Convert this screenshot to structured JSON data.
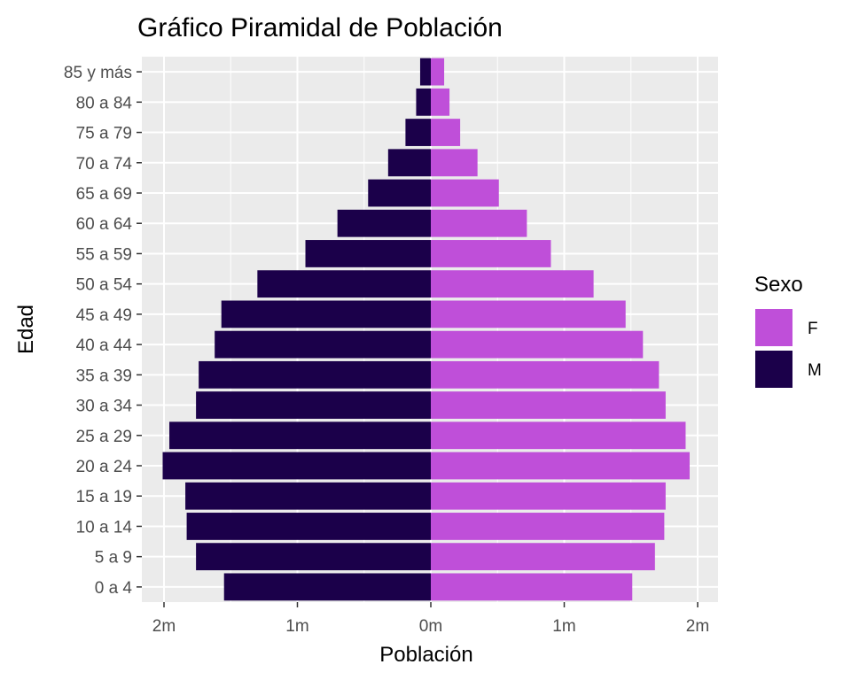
{
  "chart_data": {
    "type": "bar",
    "orientation": "horizontal",
    "title": "Gráfico Piramidal de Población",
    "xlabel": "Población",
    "ylabel": "Edad",
    "xlim": [
      -2.1,
      2.1
    ],
    "x_ticks": [
      -2,
      -1,
      0,
      1,
      2
    ],
    "x_tick_labels": [
      "2m",
      "1m",
      "0m",
      "1m",
      "2m"
    ],
    "categories": [
      "0 a 4",
      "5 a 9",
      "10 a 14",
      "15 a 19",
      "20 a 24",
      "25 a 29",
      "30 a 34",
      "35 a 39",
      "40 a 44",
      "45 a 49",
      "50 a 54",
      "55 a 59",
      "60 a 64",
      "65 a 69",
      "70 a 74",
      "75 a 79",
      "80 a 84",
      "85 y más"
    ],
    "series": [
      {
        "name": "F",
        "color": "#BF4FD9",
        "values": [
          1.51,
          1.68,
          1.75,
          1.76,
          1.94,
          1.91,
          1.76,
          1.71,
          1.59,
          1.46,
          1.22,
          0.9,
          0.72,
          0.51,
          0.35,
          0.22,
          0.14,
          0.1
        ]
      },
      {
        "name": "M",
        "color": "#1B004A",
        "values": [
          -1.55,
          -1.76,
          -1.83,
          -1.84,
          -2.01,
          -1.96,
          -1.76,
          -1.74,
          -1.62,
          -1.57,
          -1.3,
          -0.94,
          -0.7,
          -0.47,
          -0.32,
          -0.19,
          -0.11,
          -0.08
        ]
      }
    ],
    "grid": true,
    "panel_background": "#EBEBEB",
    "legend": {
      "title": "Sexo",
      "position": "right",
      "entries": [
        "F",
        "M"
      ]
    }
  }
}
